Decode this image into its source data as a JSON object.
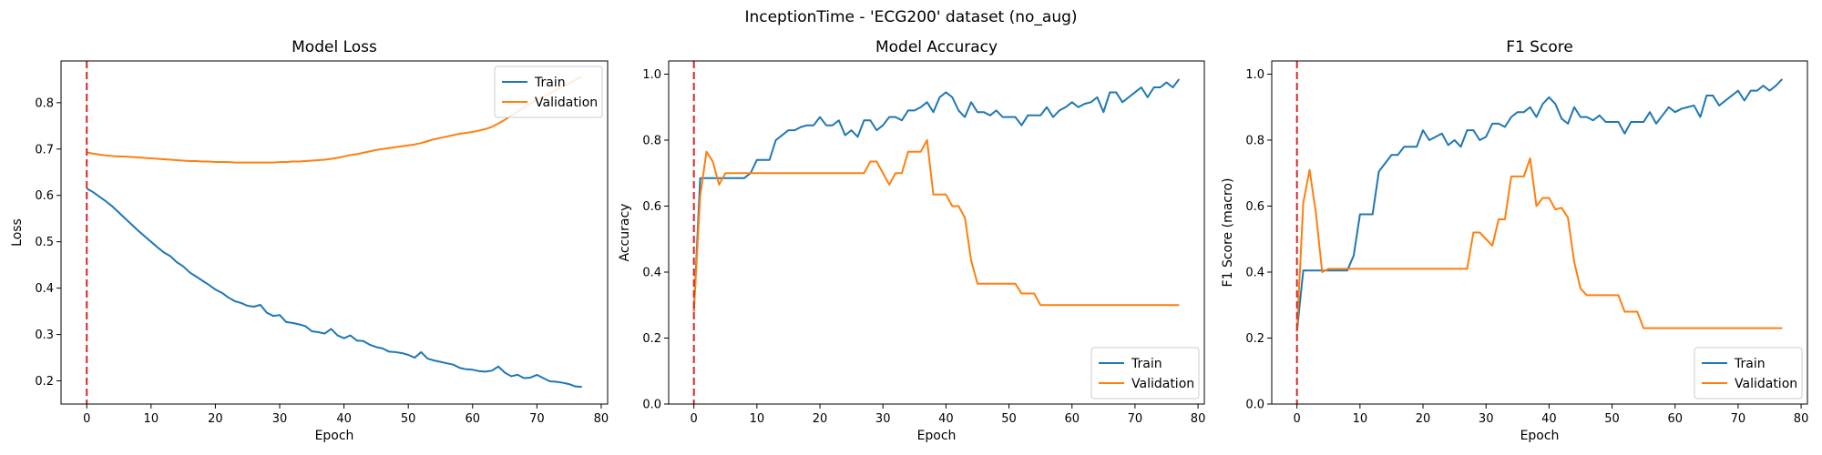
{
  "figure": {
    "suptitle": "InceptionTime - 'ECG200' dataset (no_aug)"
  },
  "colors": {
    "train": "#1f77b4",
    "validation": "#ff7f0e",
    "marker": "#d62728"
  },
  "chart_data": [
    {
      "type": "line",
      "title": "Model Loss",
      "xlabel": "Epoch",
      "ylabel": "Loss",
      "xlim": [
        -4,
        81
      ],
      "ylim": [
        0.15,
        0.89
      ],
      "xticks": [
        0,
        10,
        20,
        30,
        40,
        50,
        60,
        70,
        80
      ],
      "yticks": [
        0.2,
        0.3,
        0.4,
        0.5,
        0.6,
        0.7,
        0.8
      ],
      "tick_decimals": 1,
      "marker_x": 0,
      "legend": "top-right",
      "series": [
        {
          "name": "Train",
          "values": [
            0.615,
            0.607,
            0.597,
            0.587,
            0.576,
            0.563,
            0.55,
            0.537,
            0.524,
            0.512,
            0.5,
            0.488,
            0.477,
            0.469,
            0.456,
            0.447,
            0.434,
            0.425,
            0.416,
            0.407,
            0.397,
            0.39,
            0.38,
            0.372,
            0.368,
            0.362,
            0.36,
            0.364,
            0.347,
            0.34,
            0.342,
            0.327,
            0.325,
            0.322,
            0.318,
            0.307,
            0.305,
            0.302,
            0.312,
            0.298,
            0.292,
            0.298,
            0.287,
            0.286,
            0.278,
            0.273,
            0.27,
            0.263,
            0.262,
            0.26,
            0.256,
            0.25,
            0.262,
            0.248,
            0.244,
            0.241,
            0.238,
            0.235,
            0.228,
            0.225,
            0.224,
            0.221,
            0.22,
            0.222,
            0.231,
            0.218,
            0.21,
            0.213,
            0.206,
            0.207,
            0.213,
            0.206,
            0.199,
            0.198,
            0.196,
            0.193,
            0.188,
            0.187
          ]
        },
        {
          "name": "Validation",
          "values": [
            0.693,
            0.69,
            0.688,
            0.686,
            0.685,
            0.684,
            0.684,
            0.683,
            0.682,
            0.681,
            0.68,
            0.679,
            0.678,
            0.677,
            0.676,
            0.675,
            0.674,
            0.674,
            0.673,
            0.673,
            0.672,
            0.672,
            0.672,
            0.671,
            0.671,
            0.671,
            0.671,
            0.671,
            0.671,
            0.671,
            0.672,
            0.672,
            0.673,
            0.673,
            0.674,
            0.675,
            0.676,
            0.677,
            0.679,
            0.681,
            0.684,
            0.687,
            0.689,
            0.692,
            0.695,
            0.698,
            0.7,
            0.702,
            0.704,
            0.706,
            0.708,
            0.71,
            0.713,
            0.717,
            0.721,
            0.724,
            0.727,
            0.73,
            0.733,
            0.735,
            0.737,
            0.74,
            0.743,
            0.748,
            0.755,
            0.763,
            0.772,
            0.781,
            0.79,
            0.798,
            0.806,
            0.813,
            0.82,
            0.828,
            0.835,
            0.842,
            0.849,
            0.856
          ]
        }
      ]
    },
    {
      "type": "line",
      "title": "Model Accuracy",
      "xlabel": "Epoch",
      "ylabel": "Accuracy",
      "xlim": [
        -4,
        81
      ],
      "ylim": [
        0,
        1.04
      ],
      "xticks": [
        0,
        10,
        20,
        30,
        40,
        50,
        60,
        70,
        80
      ],
      "yticks": [
        0.0,
        0.2,
        0.4,
        0.6,
        0.8,
        1.0
      ],
      "tick_decimals": 1,
      "marker_x": 0,
      "legend": "bottom-right",
      "series": [
        {
          "name": "Train",
          "values": [
            0.28,
            0.685,
            0.685,
            0.685,
            0.685,
            0.685,
            0.685,
            0.685,
            0.685,
            0.7,
            0.74,
            0.74,
            0.74,
            0.8,
            0.815,
            0.83,
            0.83,
            0.84,
            0.845,
            0.845,
            0.87,
            0.845,
            0.845,
            0.86,
            0.815,
            0.83,
            0.81,
            0.86,
            0.86,
            0.83,
            0.845,
            0.87,
            0.87,
            0.86,
            0.89,
            0.89,
            0.9,
            0.915,
            0.885,
            0.93,
            0.945,
            0.93,
            0.89,
            0.87,
            0.915,
            0.885,
            0.885,
            0.875,
            0.89,
            0.87,
            0.87,
            0.87,
            0.845,
            0.875,
            0.875,
            0.875,
            0.9,
            0.87,
            0.89,
            0.9,
            0.915,
            0.9,
            0.91,
            0.915,
            0.93,
            0.885,
            0.945,
            0.945,
            0.915,
            0.93,
            0.945,
            0.96,
            0.93,
            0.96,
            0.96,
            0.975,
            0.96,
            0.985
          ]
        },
        {
          "name": "Validation",
          "values": [
            0.28,
            0.63,
            0.765,
            0.735,
            0.665,
            0.7,
            0.7,
            0.7,
            0.7,
            0.7,
            0.7,
            0.7,
            0.7,
            0.7,
            0.7,
            0.7,
            0.7,
            0.7,
            0.7,
            0.7,
            0.7,
            0.7,
            0.7,
            0.7,
            0.7,
            0.7,
            0.7,
            0.7,
            0.735,
            0.735,
            0.7,
            0.665,
            0.7,
            0.7,
            0.765,
            0.765,
            0.765,
            0.8,
            0.635,
            0.635,
            0.635,
            0.6,
            0.6,
            0.565,
            0.435,
            0.365,
            0.365,
            0.365,
            0.365,
            0.365,
            0.365,
            0.365,
            0.335,
            0.335,
            0.335,
            0.3,
            0.3,
            0.3,
            0.3,
            0.3,
            0.3,
            0.3,
            0.3,
            0.3,
            0.3,
            0.3,
            0.3,
            0.3,
            0.3,
            0.3,
            0.3,
            0.3,
            0.3,
            0.3,
            0.3,
            0.3,
            0.3,
            0.3
          ]
        }
      ]
    },
    {
      "type": "line",
      "title": "F1 Score",
      "xlabel": "Epoch",
      "ylabel": "F1 Score (macro)",
      "xlim": [
        -4,
        81
      ],
      "ylim": [
        0,
        1.04
      ],
      "xticks": [
        0,
        10,
        20,
        30,
        40,
        50,
        60,
        70,
        80
      ],
      "yticks": [
        0.0,
        0.2,
        0.4,
        0.6,
        0.8,
        1.0
      ],
      "tick_decimals": 1,
      "marker_x": 0,
      "legend": "bottom-right",
      "series": [
        {
          "name": "Train",
          "values": [
            0.22,
            0.405,
            0.405,
            0.405,
            0.405,
            0.405,
            0.405,
            0.405,
            0.405,
            0.45,
            0.575,
            0.575,
            0.575,
            0.705,
            0.73,
            0.755,
            0.755,
            0.78,
            0.78,
            0.78,
            0.83,
            0.8,
            0.81,
            0.82,
            0.785,
            0.8,
            0.78,
            0.83,
            0.83,
            0.8,
            0.81,
            0.85,
            0.85,
            0.84,
            0.87,
            0.885,
            0.885,
            0.9,
            0.87,
            0.91,
            0.93,
            0.91,
            0.865,
            0.85,
            0.9,
            0.87,
            0.87,
            0.86,
            0.875,
            0.855,
            0.855,
            0.855,
            0.82,
            0.855,
            0.855,
            0.855,
            0.885,
            0.85,
            0.875,
            0.9,
            0.885,
            0.895,
            0.9,
            0.905,
            0.87,
            0.935,
            0.935,
            0.905,
            0.92,
            0.935,
            0.95,
            0.92,
            0.95,
            0.95,
            0.965,
            0.95,
            0.965,
            0.985
          ]
        },
        {
          "name": "Validation",
          "values": [
            0.22,
            0.61,
            0.71,
            0.58,
            0.4,
            0.41,
            0.41,
            0.41,
            0.41,
            0.41,
            0.41,
            0.41,
            0.41,
            0.41,
            0.41,
            0.41,
            0.41,
            0.41,
            0.41,
            0.41,
            0.41,
            0.41,
            0.41,
            0.41,
            0.41,
            0.41,
            0.41,
            0.41,
            0.52,
            0.52,
            0.5,
            0.48,
            0.56,
            0.56,
            0.69,
            0.69,
            0.69,
            0.745,
            0.6,
            0.625,
            0.625,
            0.59,
            0.595,
            0.565,
            0.43,
            0.35,
            0.33,
            0.33,
            0.33,
            0.33,
            0.33,
            0.33,
            0.28,
            0.28,
            0.28,
            0.23,
            0.23,
            0.23,
            0.23,
            0.23,
            0.23,
            0.23,
            0.23,
            0.23,
            0.23,
            0.23,
            0.23,
            0.23,
            0.23,
            0.23,
            0.23,
            0.23,
            0.23,
            0.23,
            0.23,
            0.23,
            0.23,
            0.23
          ]
        }
      ]
    }
  ]
}
